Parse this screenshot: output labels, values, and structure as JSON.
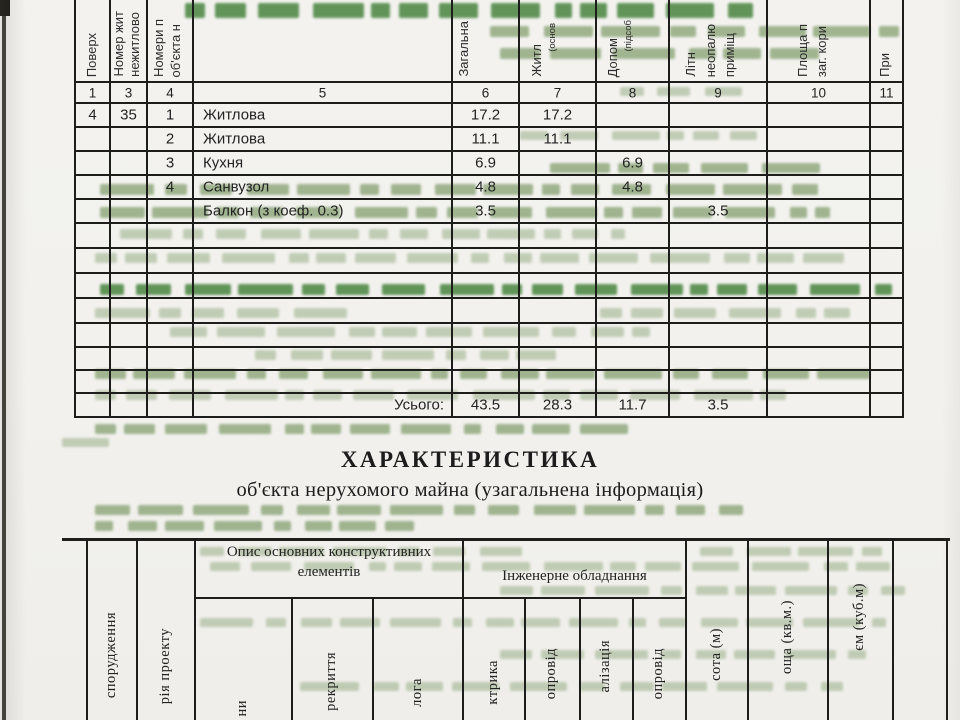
{
  "document": {
    "title": "ХАРАКТЕРИСТИКА",
    "subtitle": "об'єкта нерухомого майна (узагальнена інформація)"
  },
  "area_table": {
    "column_headers": [
      {
        "lines": [
          "Поверх"
        ]
      },
      {
        "lines": [
          "Номер жит",
          "нежитлово"
        ]
      },
      {
        "lines": [
          "Номери п",
          "об'єкта н"
        ]
      },
      {
        "lines": []
      },
      {
        "lines": [
          "Загальна"
        ]
      },
      {
        "lines": [
          "Житл",
          "(основ"
        ]
      },
      {
        "lines": [
          "Допом",
          "(підсоб"
        ]
      },
      {
        "lines": [
          "Літн",
          "неопалю",
          "приміщ"
        ]
      },
      {
        "lines": [
          "Площа п",
          "заг. кори"
        ]
      },
      {
        "lines": [
          "При"
        ]
      }
    ],
    "column_numbers": [
      "1",
      "3",
      "4",
      "5",
      "6",
      "7",
      "8",
      "9",
      "10",
      "11"
    ],
    "rows": [
      [
        "4",
        "35",
        "1",
        "Житлова",
        "17.2",
        "17.2",
        "",
        "",
        "",
        ""
      ],
      [
        "",
        "",
        "2",
        "Житлова",
        "11.1",
        "11.1",
        "",
        "",
        "",
        ""
      ],
      [
        "",
        "",
        "3",
        "Кухня",
        "6.9",
        "",
        "6.9",
        "",
        "",
        ""
      ],
      [
        "",
        "",
        "4",
        "Санвузол",
        "4.8",
        "",
        "4.8",
        "",
        "",
        ""
      ],
      [
        "",
        "",
        "",
        "Балкон (з коеф. 0.3)",
        "3.5",
        "",
        "",
        "3.5",
        "",
        ""
      ],
      [
        "",
        "",
        "",
        "",
        "",
        "",
        "",
        "",
        "",
        ""
      ],
      [
        "",
        "",
        "",
        "",
        "",
        "",
        "",
        "",
        "",
        ""
      ],
      [
        "",
        "",
        "",
        "",
        "",
        "",
        "",
        "",
        "",
        ""
      ],
      [
        "",
        "",
        "",
        "",
        "",
        "",
        "",
        "",
        "",
        ""
      ],
      [
        "",
        "",
        "",
        "",
        "",
        "",
        "",
        "",
        "",
        ""
      ],
      [
        "",
        "",
        "",
        "",
        "",
        "",
        "",
        "",
        "",
        ""
      ],
      [
        "",
        "",
        "",
        "",
        "",
        "",
        "",
        "",
        "",
        ""
      ]
    ],
    "totals": {
      "label": "Усього:",
      "values": [
        "43.5",
        "28.3",
        "11.7",
        "3.5"
      ]
    }
  },
  "characteristics_table": {
    "group_headers": [
      {
        "lines": [
          "Опис основних конструктивних",
          "елементів"
        ]
      },
      {
        "lines": [
          "Інженерне обладнання"
        ]
      }
    ],
    "rotated_column_fragments": [
      "спорудження",
      "рія проекту",
      "ни",
      "рекриття",
      "лога",
      "ктрика",
      "опровід",
      "алізація",
      "опровід",
      "сота (м)",
      "оща (кв.м.)",
      "єм (куб.м)"
    ]
  },
  "artifacts": {
    "bleed_through_note": "нерозбірливий зелений текст, що просвічує зі звороту аркуша"
  },
  "colors": {
    "page_bg": "#f2f1ed",
    "table_line": "#1d1d1c",
    "ink": "#232323",
    "bleed_green_light": "#86a072",
    "bleed_green_mid": "#6d8f56",
    "bleed_green_dark": "#3e7d35"
  }
}
